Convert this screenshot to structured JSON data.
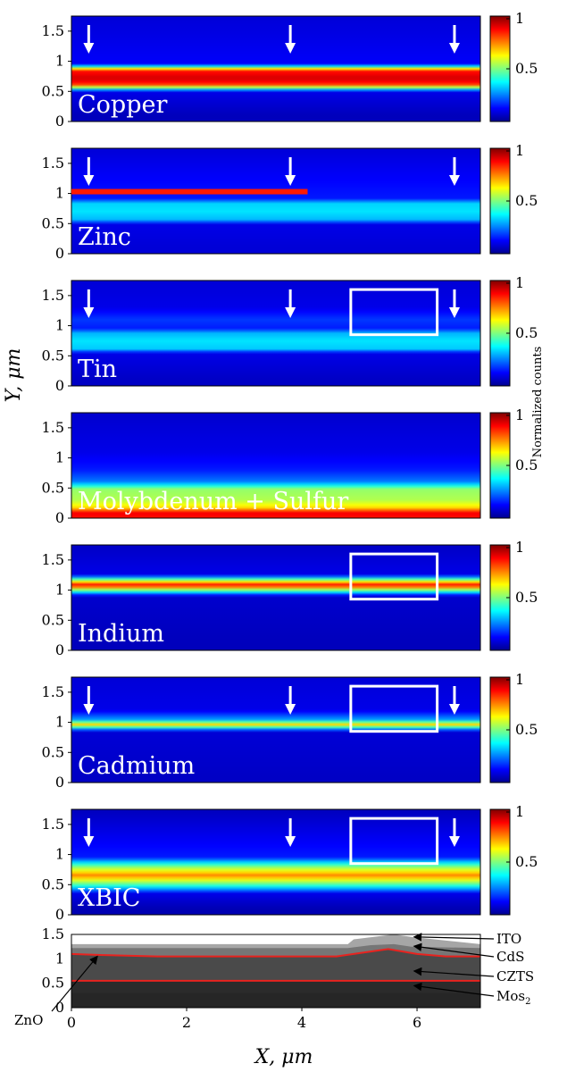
{
  "colors": {
    "jet": [
      "#00008f",
      "#0000ff",
      "#007fff",
      "#00ffff",
      "#7fff7f",
      "#ffff00",
      "#ff7f00",
      "#ff0000",
      "#7f0000"
    ],
    "background_field": "#1f2a8c",
    "arrow": "#ffffff",
    "box": "#ffffff",
    "panel_label": "#ffffff",
    "layer_zno_bg": "#262626",
    "layer_mos2": "#2b2b2b",
    "layer_czts": "#4a4a4a",
    "layer_cds": "#767676",
    "layer_ito": "#a6a6a6",
    "interface_line": "#e8231f"
  },
  "yaxis_label": "Y, μm",
  "xaxis_label": "X, μm",
  "colorbar_label": "Normalized counts",
  "colorbar_ticks": [
    "1",
    "0.5"
  ],
  "y_ticks": [
    "0",
    "0.5",
    "1",
    "1.5"
  ],
  "x_ticks": [
    "0",
    "2",
    "4",
    "6"
  ],
  "panels": [
    {
      "label": "Copper",
      "arrows": [
        0.3,
        3.8,
        6.65
      ],
      "box": null
    },
    {
      "label": "Zinc",
      "arrows": [
        0.3,
        3.8,
        6.65
      ],
      "box": null
    },
    {
      "label": "Tin",
      "arrows": [
        0.3,
        3.8,
        6.65
      ],
      "box": [
        4.85,
        6.35,
        0.85,
        1.6
      ]
    },
    {
      "label": "Molybdenum + Sulfur",
      "arrows": [],
      "box": null
    },
    {
      "label": "Indium",
      "arrows": [],
      "box": [
        4.85,
        6.35,
        0.85,
        1.6
      ]
    },
    {
      "label": "Cadmium",
      "arrows": [
        0.3,
        3.8,
        6.65
      ],
      "box": [
        4.85,
        6.35,
        0.85,
        1.6
      ]
    },
    {
      "label": "XBIC",
      "arrows": [
        0.3,
        3.8,
        6.65
      ],
      "box": [
        4.85,
        6.35,
        0.85,
        1.6
      ]
    }
  ],
  "layers": [
    {
      "name": "ITO",
      "label_parts": [
        "ITO"
      ]
    },
    {
      "name": "CdS",
      "label_parts": [
        "CdS"
      ]
    },
    {
      "name": "CZTS",
      "label_parts": [
        "CZTS"
      ]
    },
    {
      "name": "MoS2",
      "label_parts": [
        "Mos",
        "2"
      ]
    },
    {
      "name": "ZnO",
      "label_parts": [
        "ZnO"
      ]
    }
  ],
  "chart_data": [
    {
      "type": "heatmap",
      "title": "Copper",
      "xlim": [
        0,
        7.1
      ],
      "ylim": [
        0,
        1.75
      ],
      "zlim": [
        0,
        1
      ],
      "profile": [
        {
          "y": 0.1,
          "v": 0.05
        },
        {
          "y": 0.5,
          "v": 0.1
        },
        {
          "y": 0.55,
          "v": 0.45
        },
        {
          "y": 0.62,
          "v": 0.85
        },
        {
          "y": 0.72,
          "v": 0.92
        },
        {
          "y": 0.85,
          "v": 0.85
        },
        {
          "y": 0.9,
          "v": 0.45
        },
        {
          "y": 0.95,
          "v": 0.12
        },
        {
          "y": 1.75,
          "v": 0.08
        }
      ]
    },
    {
      "type": "heatmap",
      "title": "Zinc",
      "xlim": [
        0,
        7.1
      ],
      "ylim": [
        0,
        1.75
      ],
      "zlim": [
        0,
        1
      ],
      "profile": [
        {
          "y": 0.1,
          "v": 0.08
        },
        {
          "y": 0.5,
          "v": 0.1
        },
        {
          "y": 0.55,
          "v": 0.3
        },
        {
          "y": 0.7,
          "v": 0.35
        },
        {
          "y": 0.85,
          "v": 0.33
        },
        {
          "y": 0.9,
          "v": 0.15
        },
        {
          "y": 1.75,
          "v": 0.08
        }
      ],
      "band": {
        "x0": 0,
        "x1": 4.1,
        "y": 1.03,
        "v": 0.85
      }
    },
    {
      "type": "heatmap",
      "title": "Tin",
      "xlim": [
        0,
        7.1
      ],
      "ylim": [
        0,
        1.75
      ],
      "zlim": [
        0,
        1
      ],
      "profile": [
        {
          "y": 0.1,
          "v": 0.06
        },
        {
          "y": 0.55,
          "v": 0.1
        },
        {
          "y": 0.6,
          "v": 0.32
        },
        {
          "y": 0.75,
          "v": 0.35
        },
        {
          "y": 0.88,
          "v": 0.3
        },
        {
          "y": 0.95,
          "v": 0.15
        },
        {
          "y": 1.1,
          "v": 0.18
        },
        {
          "y": 1.3,
          "v": 0.1
        },
        {
          "y": 1.75,
          "v": 0.08
        }
      ]
    },
    {
      "type": "heatmap",
      "title": "Molybdenum + Sulfur",
      "xlim": [
        0,
        7.1
      ],
      "ylim": [
        0,
        1.75
      ],
      "zlim": [
        0,
        1
      ],
      "profile": [
        {
          "y": 0.0,
          "v": 0.85
        },
        {
          "y": 0.08,
          "v": 0.9
        },
        {
          "y": 0.18,
          "v": 0.65
        },
        {
          "y": 0.3,
          "v": 0.55
        },
        {
          "y": 0.48,
          "v": 0.52
        },
        {
          "y": 0.6,
          "v": 0.25
        },
        {
          "y": 0.8,
          "v": 0.15
        },
        {
          "y": 1.1,
          "v": 0.1
        },
        {
          "y": 1.75,
          "v": 0.07
        }
      ]
    },
    {
      "type": "heatmap",
      "title": "Indium",
      "xlim": [
        0,
        7.1
      ],
      "ylim": [
        0,
        1.75
      ],
      "zlim": [
        0,
        1
      ],
      "profile": [
        {
          "y": 0.1,
          "v": 0.05
        },
        {
          "y": 0.9,
          "v": 0.07
        },
        {
          "y": 1.0,
          "v": 0.5
        },
        {
          "y": 1.08,
          "v": 0.9
        },
        {
          "y": 1.15,
          "v": 0.6
        },
        {
          "y": 1.25,
          "v": 0.1
        },
        {
          "y": 1.75,
          "v": 0.06
        }
      ]
    },
    {
      "type": "heatmap",
      "title": "Cadmium",
      "xlim": [
        0,
        7.1
      ],
      "ylim": [
        0,
        1.75
      ],
      "zlim": [
        0,
        1
      ],
      "profile": [
        {
          "y": 0.1,
          "v": 0.06
        },
        {
          "y": 0.85,
          "v": 0.08
        },
        {
          "y": 0.92,
          "v": 0.45
        },
        {
          "y": 0.97,
          "v": 0.7
        },
        {
          "y": 1.03,
          "v": 0.3
        },
        {
          "y": 1.2,
          "v": 0.1
        },
        {
          "y": 1.75,
          "v": 0.08
        }
      ]
    },
    {
      "type": "heatmap",
      "title": "XBIC",
      "xlim": [
        0,
        7.1
      ],
      "ylim": [
        0,
        1.75
      ],
      "zlim": [
        0,
        1
      ],
      "profile": [
        {
          "y": 0.1,
          "v": 0.04
        },
        {
          "y": 0.35,
          "v": 0.1
        },
        {
          "y": 0.5,
          "v": 0.45
        },
        {
          "y": 0.65,
          "v": 0.75
        },
        {
          "y": 0.8,
          "v": 0.5
        },
        {
          "y": 0.95,
          "v": 0.15
        },
        {
          "y": 1.75,
          "v": 0.05
        }
      ]
    },
    {
      "type": "area",
      "title": "",
      "xlabel": "X, μm",
      "xlim": [
        0,
        7.1
      ],
      "ylim": [
        0,
        1.5
      ],
      "series": [
        {
          "name": "ITO",
          "x": [
            0,
            4.8,
            4.9,
            5.6,
            5.9,
            7.1
          ],
          "y": [
            1.3,
            1.3,
            1.4,
            1.5,
            1.45,
            1.3
          ]
        },
        {
          "name": "CdS",
          "x": [
            0,
            4.8,
            5.2,
            5.6,
            5.9,
            7.1
          ],
          "y": [
            1.22,
            1.22,
            1.28,
            1.3,
            1.25,
            1.22
          ]
        },
        {
          "name": "CZTS",
          "x": [
            0,
            0.5,
            1.5,
            3.0,
            4.6,
            5.2,
            5.5,
            6.0,
            6.5,
            7.1
          ],
          "y": [
            1.1,
            1.08,
            1.05,
            1.05,
            1.05,
            1.15,
            1.2,
            1.1,
            1.05,
            1.05
          ]
        },
        {
          "name": "MoS2",
          "x": [
            0,
            7.1
          ],
          "y": [
            0.55,
            0.55
          ]
        },
        {
          "name": "ZnO",
          "x": [
            0,
            7.1
          ],
          "y": [
            0.3,
            0.3
          ]
        }
      ]
    }
  ]
}
